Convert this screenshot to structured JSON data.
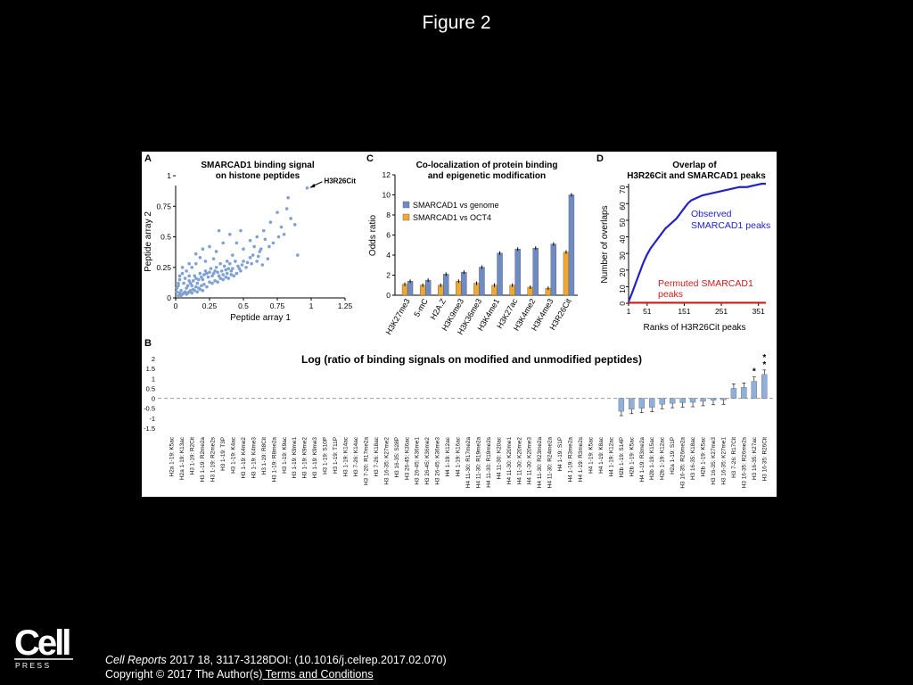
{
  "slide": {
    "title": "Figure 2"
  },
  "footer": {
    "journal": "Cell Reports",
    "citation": " 2017 18, 3117-3128DOI: (10.1016/j.celrep.2017.02.070)",
    "copyright": "Copyright © 2017 The Author(s)",
    "terms_link": " Terms and Conditions"
  },
  "logo": {
    "word": "Cell",
    "press": "P R E S S"
  },
  "panels": {
    "a": "A",
    "b": "B",
    "c": "C",
    "d": "D"
  },
  "chart_data": [
    {
      "panel": "A",
      "type": "scatter",
      "title": "SMARCAD1 binding signal",
      "subtitle": "on histone peptides",
      "xlabel": "Peptide array 1",
      "ylabel": "Peptide array 2",
      "xlim": [
        0,
        1.25
      ],
      "ylim": [
        0,
        0.92
      ],
      "xticks": [
        "0",
        "0.25",
        "0.5",
        "0.75",
        "1",
        "1.25"
      ],
      "yticks": [
        "0",
        "0.25",
        "0.5",
        "0.75",
        "1"
      ],
      "annotation": {
        "text": "H3R26Cit",
        "x": 0.97,
        "y": 0.9
      },
      "color": "#7ea1d4",
      "points": [
        [
          0.97,
          0.9
        ],
        [
          0.83,
          0.82
        ],
        [
          0.82,
          0.73
        ],
        [
          0.85,
          0.65
        ],
        [
          0.75,
          0.7
        ],
        [
          0.78,
          0.58
        ],
        [
          0.7,
          0.62
        ],
        [
          0.65,
          0.55
        ],
        [
          0.88,
          0.6
        ],
        [
          0.6,
          0.5
        ],
        [
          0.55,
          0.47
        ],
        [
          0.72,
          0.45
        ],
        [
          0.48,
          0.55
        ],
        [
          0.4,
          0.52
        ],
        [
          0.45,
          0.45
        ],
        [
          0.5,
          0.4
        ],
        [
          0.35,
          0.45
        ],
        [
          0.3,
          0.38
        ],
        [
          0.25,
          0.42
        ],
        [
          0.62,
          0.38
        ],
        [
          0.55,
          0.33
        ],
        [
          0.42,
          0.35
        ],
        [
          0.38,
          0.3
        ],
        [
          0.33,
          0.28
        ],
        [
          0.28,
          0.32
        ],
        [
          0.22,
          0.3
        ],
        [
          0.18,
          0.33
        ],
        [
          0.15,
          0.28
        ],
        [
          0.12,
          0.25
        ],
        [
          0.08,
          0.22
        ],
        [
          0.05,
          0.2
        ],
        [
          0.03,
          0.15
        ],
        [
          0.02,
          0.1
        ],
        [
          0.01,
          0.05
        ],
        [
          0.04,
          0.06
        ],
        [
          0.06,
          0.12
        ],
        [
          0.08,
          0.08
        ],
        [
          0.1,
          0.14
        ],
        [
          0.12,
          0.1
        ],
        [
          0.14,
          0.18
        ],
        [
          0.16,
          0.12
        ],
        [
          0.18,
          0.2
        ],
        [
          0.2,
          0.15
        ],
        [
          0.22,
          0.22
        ],
        [
          0.24,
          0.17
        ],
        [
          0.26,
          0.24
        ],
        [
          0.28,
          0.2
        ],
        [
          0.3,
          0.25
        ],
        [
          0.32,
          0.18
        ],
        [
          0.34,
          0.22
        ],
        [
          0.36,
          0.26
        ],
        [
          0.38,
          0.2
        ],
        [
          0.4,
          0.28
        ],
        [
          0.42,
          0.24
        ],
        [
          0.44,
          0.3
        ],
        [
          0.46,
          0.26
        ],
        [
          0.48,
          0.22
        ],
        [
          0.5,
          0.3
        ],
        [
          0.52,
          0.25
        ],
        [
          0.56,
          0.28
        ],
        [
          0.6,
          0.3
        ],
        [
          0.64,
          0.27
        ],
        [
          0.68,
          0.32
        ],
        [
          0.05,
          0.03
        ],
        [
          0.07,
          0.05
        ],
        [
          0.09,
          0.04
        ],
        [
          0.11,
          0.06
        ],
        [
          0.13,
          0.07
        ],
        [
          0.15,
          0.09
        ],
        [
          0.17,
          0.08
        ],
        [
          0.19,
          0.1
        ],
        [
          0.21,
          0.11
        ],
        [
          0.23,
          0.09
        ],
        [
          0.25,
          0.13
        ],
        [
          0.27,
          0.12
        ],
        [
          0.29,
          0.14
        ],
        [
          0.31,
          0.13
        ],
        [
          0.33,
          0.16
        ],
        [
          0.35,
          0.15
        ],
        [
          0.37,
          0.17
        ],
        [
          0.39,
          0.16
        ],
        [
          0.41,
          0.19
        ],
        [
          0.43,
          0.18
        ],
        [
          0.45,
          0.2
        ],
        [
          0.02,
          0.02
        ],
        [
          0.03,
          0.04
        ],
        [
          0.04,
          0.02
        ],
        [
          0.06,
          0.04
        ],
        [
          0.08,
          0.03
        ],
        [
          0.1,
          0.05
        ],
        [
          0.12,
          0.04
        ],
        [
          0.14,
          0.06
        ],
        [
          0.16,
          0.05
        ],
        [
          0.18,
          0.07
        ],
        [
          0.2,
          0.06
        ],
        [
          0.01,
          0.08
        ],
        [
          0.02,
          0.12
        ],
        [
          0.03,
          0.18
        ],
        [
          0.05,
          0.25
        ],
        [
          0.1,
          0.28
        ],
        [
          0.58,
          0.42
        ],
        [
          0.66,
          0.48
        ],
        [
          0.9,
          0.35
        ],
        [
          0.15,
          0.36
        ],
        [
          0.2,
          0.4
        ],
        [
          0.32,
          0.55
        ],
        [
          0.1,
          0.18
        ],
        [
          0.07,
          0.16
        ],
        [
          0.09,
          0.1
        ],
        [
          0.11,
          0.12
        ],
        [
          0.13,
          0.14
        ],
        [
          0.15,
          0.16
        ],
        [
          0.17,
          0.15
        ],
        [
          0.19,
          0.17
        ],
        [
          0.21,
          0.19
        ],
        [
          0.23,
          0.2
        ],
        [
          0.25,
          0.21
        ],
        [
          0.27,
          0.18
        ],
        [
          0.29,
          0.22
        ],
        [
          0.31,
          0.21
        ],
        [
          0.35,
          0.19
        ],
        [
          0.37,
          0.23
        ],
        [
          0.39,
          0.24
        ],
        [
          0.41,
          0.22
        ],
        [
          0.47,
          0.24
        ],
        [
          0.49,
          0.27
        ],
        [
          0.53,
          0.29
        ],
        [
          0.57,
          0.35
        ],
        [
          0.61,
          0.34
        ],
        [
          0.63,
          0.4
        ],
        [
          0.69,
          0.42
        ],
        [
          0.76,
          0.5
        ],
        [
          0.8,
          0.52
        ]
      ]
    },
    {
      "panel": "C",
      "type": "bar",
      "title": "Co-localization of protein binding",
      "subtitle": "and epigenetic modification",
      "ylabel": "Odds ratio",
      "ylim": [
        0,
        12
      ],
      "yticks": [
        "0",
        "2",
        "4",
        "6",
        "8",
        "10",
        "12"
      ],
      "legend": {
        "placement": "upper-left"
      },
      "categories": [
        "H3K27me3",
        "5-mC",
        "H2A.Z",
        "H3K9me3",
        "H3K36me3",
        "H3K4me1",
        "H3K27ac",
        "H3K4me2",
        "H3K4me3",
        "H3R26Cit"
      ],
      "series": [
        {
          "name": "SMARCAD1 vs genome",
          "color": "#6f8bc6",
          "values": [
            1.4,
            1.5,
            2.1,
            2.3,
            2.8,
            4.2,
            4.6,
            4.7,
            5.1,
            10.0
          ]
        },
        {
          "name": "SMARCAD1 vs OCT4",
          "color": "#f0a830",
          "values": [
            1.1,
            1.0,
            1.0,
            1.4,
            1.2,
            1.0,
            1.0,
            0.8,
            0.7,
            4.3
          ]
        }
      ]
    },
    {
      "panel": "D",
      "type": "line",
      "title": "Overlap of",
      "subtitle": "H3R26Cit and SMARCAD1 peaks",
      "xlabel": "Ranks of H3R26Cit peaks",
      "ylabel": "Number of overlaps",
      "xlim": [
        1,
        371
      ],
      "ylim": [
        0,
        72
      ],
      "xticks": [
        "1",
        "51",
        "151",
        "251",
        "351"
      ],
      "yticks": [
        "0",
        "10",
        "20",
        "30",
        "40",
        "50",
        "60",
        "70"
      ],
      "series": [
        {
          "name": "Observed SMARCAD1 peaks",
          "color": "#2222c8",
          "x": [
            1,
            10,
            20,
            30,
            40,
            50,
            60,
            70,
            80,
            90,
            100,
            110,
            120,
            130,
            140,
            150,
            160,
            170,
            180,
            190,
            200,
            220,
            240,
            260,
            280,
            300,
            320,
            340,
            360,
            371
          ],
          "y": [
            1,
            6,
            12,
            18,
            24,
            29,
            33,
            36,
            39,
            42,
            45,
            47,
            49,
            51,
            54,
            57,
            60,
            62,
            63,
            64,
            65,
            66,
            67,
            68,
            69,
            70,
            70,
            71,
            72,
            72
          ]
        },
        {
          "name": "Permuted SMARCAD1 peaks",
          "color": "#c81c1c",
          "x": [
            1,
            371
          ],
          "y": [
            0.3,
            0.3
          ]
        }
      ]
    },
    {
      "panel": "B",
      "type": "bar",
      "title": "Log (ratio of binding signals on modified and unmodified peptides)",
      "ylim": [
        -1.5,
        2
      ],
      "yticks": [
        "2",
        "1.5",
        "1",
        "0.5",
        "0",
        "-0.5",
        "-1",
        "-1.5"
      ],
      "color": "#8fb0dc",
      "star_annotations": [
        {
          "index": 71,
          "text": "*"
        },
        {
          "index": 72,
          "text": "*\n*"
        }
      ],
      "categories": [
        "H2a 1-19: K5ac",
        "H2a 1-19: K13ac",
        "H3 1-19: R2Cit",
        "H3 1-19: R2me2a",
        "H3 1-19: R2me2s",
        "H3 1-19: T3P",
        "H3 1-19: K4ac",
        "H3 1-19: K4me2",
        "H3 1-19: K4me3",
        "H3 1-19: R8Cit",
        "H3 1-19: R8me2a",
        "H3 1-19: K9ac",
        "H3 1-19: K9me1",
        "H3 1-19: K9me2",
        "H3 1-19: K9me3",
        "H3 1-19: S10P",
        "H3 1-19: T11P",
        "H3 1-19: K14ac",
        "H3 7-26: K14ac",
        "H3 7-26: R17me2a",
        "H3 7-26: K18ac",
        "H3 16-35: K27me2",
        "H3 16-35: S28P",
        "H3 26-45: K36ac",
        "H3 26-45: K36me1",
        "H3 26-45: K36me2",
        "H3 26-45: K36me3",
        "H4 1-19: K12ac",
        "H4 1-19: K16ac",
        "H4 11-30: R17me2a",
        "H4 11-30: R19me2a",
        "H4 11-30: R19me2s",
        "H4 11-30: K20ac",
        "H4 11-30: K20me1",
        "H4 11-30: K20me2",
        "H4 11-30: K20me3",
        "H4 11-30: R23me2a",
        "H4 11-30: R24me2a",
        "H4 1-19: S1P",
        "H4 1-19: R3me2a",
        "H4 1-19: R3me2s",
        "H4 1-19: K5ac",
        "H4 1-19: K8ac",
        "H4 1-19: K12ac",
        "H2b 1-19: S14P",
        "H2b 1-19: K5ac",
        "H4 1-19: R3me2a",
        "H2b 1-19: K15ac",
        "H2b 1-19: K12ac",
        "H2a 1-19: S1P",
        "H3 16-35: R26me2a",
        "H3 16-35: K18ac",
        "H2b 1-19: K5ac",
        "H3 16-35: K27me3",
        "H3 16-35: K27me1",
        "H3 7-26: R17Cit",
        "H3 16-35: R26me2s",
        "H3 16-35: K27ac",
        "H3 16-35: R26Cit"
      ],
      "values": [
        0,
        0,
        0,
        0,
        0,
        0,
        0,
        0,
        0,
        0,
        0,
        0,
        0,
        0,
        0,
        0,
        0,
        0,
        0,
        0,
        0,
        0,
        0,
        0,
        0,
        0,
        0,
        0,
        0,
        0,
        0,
        0,
        0,
        0,
        0,
        0,
        0,
        0,
        0,
        0,
        0,
        0,
        0,
        0,
        -0.65,
        -0.55,
        -0.5,
        -0.45,
        -0.3,
        -0.25,
        -0.22,
        -0.2,
        -0.15,
        -0.1,
        -0.08,
        0.5,
        0.55,
        0.85,
        1.2
      ]
    }
  ]
}
